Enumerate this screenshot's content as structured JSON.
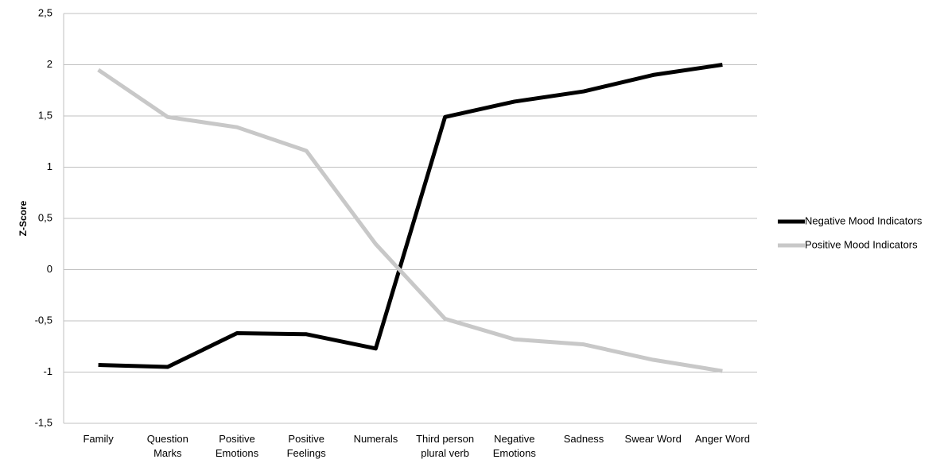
{
  "chart_data": {
    "type": "line",
    "y_label": "Z-Score",
    "categories": [
      "Family",
      "Question Marks",
      "Positive Emotions",
      "Positive Feelings",
      "Numerals",
      "Third person plural verb",
      "Negative Emotions",
      "Sadness",
      "Swear Word",
      "Anger Word"
    ],
    "series": [
      {
        "name": "Negative Mood Indicators",
        "color": "#000000",
        "values": [
          -0.93,
          -0.95,
          -0.62,
          -0.63,
          -0.77,
          1.49,
          1.64,
          1.74,
          1.9,
          2.0
        ]
      },
      {
        "name": "Positive Mood Indicators",
        "color": "#c8c8c8",
        "values": [
          1.95,
          1.49,
          1.39,
          1.16,
          0.25,
          -0.48,
          -0.68,
          -0.73,
          -0.88,
          -0.99
        ]
      }
    ],
    "ylim": [
      -1.5,
      2.5
    ],
    "yticks": [
      {
        "value": -1.5,
        "label": "-1,5"
      },
      -1,
      {
        "value": -0.5,
        "label": "-0,5"
      },
      0,
      {
        "value": 0.5,
        "label": "0,5"
      },
      1,
      {
        "value": 1.5,
        "label": "1,5"
      },
      2,
      {
        "value": 2.5,
        "label": "2,5"
      }
    ],
    "grid": true,
    "legend": "right"
  }
}
